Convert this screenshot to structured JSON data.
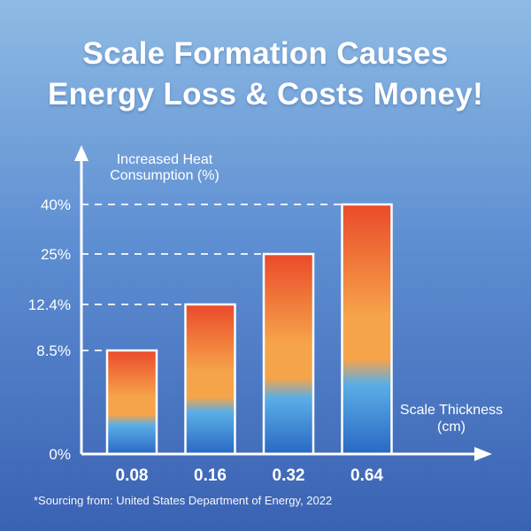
{
  "title_line1": "Scale Formation Causes",
  "title_line2": "Energy Loss & Costs Money!",
  "source_note": "*Sourcing from: United States Department of Energy, 2022",
  "colors": {
    "bar_top": "#ea4a2a",
    "bar_mid": "#f6a44a",
    "bar_low": "#5aaee6",
    "bar_bottom": "#2a68c4",
    "axis": "#ffffff"
  },
  "chart_data": {
    "type": "bar",
    "title": "Scale Formation Causes Energy Loss & Costs Money!",
    "ylabel_lines": [
      "Increased Heat",
      "Consumption (%)"
    ],
    "xlabel_lines": [
      "Scale Thickness",
      "(cm)"
    ],
    "categories": [
      "0.08",
      "0.16",
      "0.32",
      "0.64"
    ],
    "values": [
      8.5,
      12.4,
      25,
      40
    ],
    "y_tick_labels": [
      "0%",
      "8.5%",
      "12.4%",
      "25%",
      "40%"
    ],
    "unit": "%",
    "grid": false,
    "reference_lines": "dashed lines from each bar top to y-axis"
  }
}
